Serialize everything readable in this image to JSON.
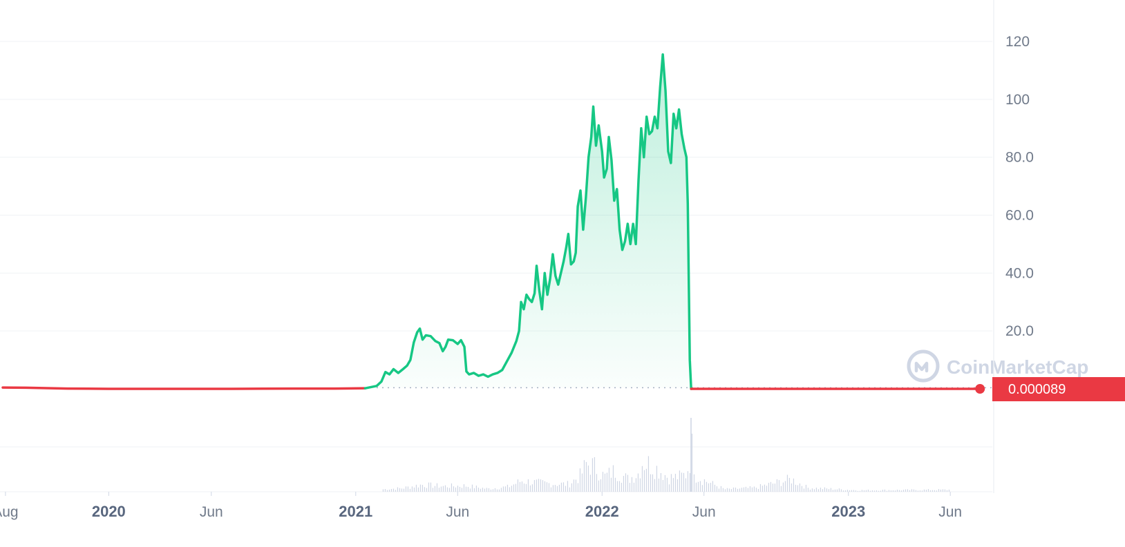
{
  "watermark": {
    "text": "CoinMarketCap",
    "icon": "coinmarketcap-logo-icon"
  },
  "current_price": {
    "label": "0.000089",
    "color": "#ea3943"
  },
  "colors": {
    "up": "#16c784",
    "down": "#ea3943",
    "grid": "#eff2f5",
    "axis_text": "#707a8a",
    "volume": "#cfd6e4"
  },
  "chart_data": {
    "type": "area",
    "title": "",
    "xlabel": "",
    "ylabel": "",
    "xlim": [
      "2019-07-28",
      "2023-07-22"
    ],
    "ylim": [
      0,
      130
    ],
    "yticks": [
      20,
      40,
      60,
      80,
      100,
      120
    ],
    "ytick_labels": [
      "20.0",
      "40.0",
      "60.0",
      "80.0",
      "100",
      "120"
    ],
    "xticks": [
      {
        "date": "2019-08-01",
        "label": "Aug",
        "major": false
      },
      {
        "date": "2020-01-01",
        "label": "2020",
        "major": true
      },
      {
        "date": "2020-06-01",
        "label": "Jun",
        "major": false
      },
      {
        "date": "2021-01-01",
        "label": "2021",
        "major": true
      },
      {
        "date": "2021-06-01",
        "label": "Jun",
        "major": false
      },
      {
        "date": "2022-01-01",
        "label": "2022",
        "major": true
      },
      {
        "date": "2022-06-01",
        "label": "Jun",
        "major": false
      },
      {
        "date": "2023-01-01",
        "label": "2023",
        "major": true
      },
      {
        "date": "2023-06-01",
        "label": "Jun",
        "major": false
      }
    ],
    "baseline": 0.4,
    "grid": true,
    "series": [
      {
        "values": [
          [
            "2019-07-28",
            0.45
          ],
          [
            "2019-09-01",
            0.4
          ],
          [
            "2019-11-01",
            0.1
          ],
          [
            "2020-01-01",
            0.0
          ],
          [
            "2020-04-01",
            0.0
          ],
          [
            "2020-07-01",
            0.0
          ],
          [
            "2020-10-01",
            0.1
          ],
          [
            "2020-12-01",
            0.1
          ],
          [
            "2021-01-15",
            0.2
          ],
          [
            "2021-02-01",
            1.0
          ],
          [
            "2021-02-08",
            2.5
          ],
          [
            "2021-02-14",
            5.8
          ],
          [
            "2021-02-20",
            5.0
          ],
          [
            "2021-02-26",
            6.8
          ],
          [
            "2021-03-05",
            5.5
          ],
          [
            "2021-03-12",
            6.8
          ],
          [
            "2021-03-18",
            8.0
          ],
          [
            "2021-03-23",
            10.0
          ],
          [
            "2021-03-28",
            16.0
          ],
          [
            "2021-04-02",
            19.5
          ],
          [
            "2021-04-06",
            20.8
          ],
          [
            "2021-04-10",
            17.0
          ],
          [
            "2021-04-15",
            18.5
          ],
          [
            "2021-04-22",
            18.2
          ],
          [
            "2021-04-29",
            16.5
          ],
          [
            "2021-05-05",
            15.8
          ],
          [
            "2021-05-10",
            13.0
          ],
          [
            "2021-05-14",
            14.5
          ],
          [
            "2021-05-18",
            17.0
          ],
          [
            "2021-05-25",
            16.8
          ],
          [
            "2021-06-01",
            15.5
          ],
          [
            "2021-06-06",
            16.8
          ],
          [
            "2021-06-11",
            14.5
          ],
          [
            "2021-06-14",
            6.0
          ],
          [
            "2021-06-18",
            5.0
          ],
          [
            "2021-06-25",
            5.5
          ],
          [
            "2021-07-02",
            4.5
          ],
          [
            "2021-07-09",
            5.0
          ],
          [
            "2021-07-16",
            4.2
          ],
          [
            "2021-07-23",
            5.0
          ],
          [
            "2021-07-30",
            5.5
          ],
          [
            "2021-08-06",
            6.5
          ],
          [
            "2021-08-13",
            9.5
          ],
          [
            "2021-08-20",
            12.5
          ],
          [
            "2021-08-27",
            16.5
          ],
          [
            "2021-08-31",
            20.0
          ],
          [
            "2021-09-03",
            30.0
          ],
          [
            "2021-09-07",
            27.5
          ],
          [
            "2021-09-11",
            32.5
          ],
          [
            "2021-09-15",
            31.0
          ],
          [
            "2021-09-19",
            30.0
          ],
          [
            "2021-09-23",
            33.0
          ],
          [
            "2021-09-26",
            42.5
          ],
          [
            "2021-09-30",
            34.0
          ],
          [
            "2021-10-04",
            27.5
          ],
          [
            "2021-10-08",
            40.0
          ],
          [
            "2021-10-12",
            32.5
          ],
          [
            "2021-10-16",
            38.0
          ],
          [
            "2021-10-20",
            46.5
          ],
          [
            "2021-10-24",
            39.0
          ],
          [
            "2021-10-28",
            36.0
          ],
          [
            "2021-11-01",
            40.0
          ],
          [
            "2021-11-05",
            44.0
          ],
          [
            "2021-11-09",
            49.0
          ],
          [
            "2021-11-12",
            53.5
          ],
          [
            "2021-11-16",
            43.0
          ],
          [
            "2021-11-20",
            44.0
          ],
          [
            "2021-11-23",
            47.0
          ],
          [
            "2021-11-26",
            63.0
          ],
          [
            "2021-11-30",
            68.5
          ],
          [
            "2021-12-04",
            55.0
          ],
          [
            "2021-12-08",
            66.0
          ],
          [
            "2021-12-12",
            80.0
          ],
          [
            "2021-12-16",
            87.0
          ],
          [
            "2021-12-19",
            97.5
          ],
          [
            "2021-12-23",
            84.0
          ],
          [
            "2021-12-27",
            91.0
          ],
          [
            "2022-01-01",
            82.0
          ],
          [
            "2022-01-04",
            73.0
          ],
          [
            "2022-01-08",
            76.0
          ],
          [
            "2022-01-11",
            87.0
          ],
          [
            "2022-01-15",
            79.0
          ],
          [
            "2022-01-19",
            65.0
          ],
          [
            "2022-01-23",
            69.0
          ],
          [
            "2022-01-27",
            55.0
          ],
          [
            "2022-01-31",
            48.0
          ],
          [
            "2022-02-04",
            51.0
          ],
          [
            "2022-02-08",
            57.0
          ],
          [
            "2022-02-12",
            50.0
          ],
          [
            "2022-02-16",
            57.0
          ],
          [
            "2022-02-20",
            50.0
          ],
          [
            "2022-02-24",
            72.0
          ],
          [
            "2022-02-28",
            90.0
          ],
          [
            "2022-03-04",
            80.0
          ],
          [
            "2022-03-08",
            94.0
          ],
          [
            "2022-03-12",
            88.0
          ],
          [
            "2022-03-16",
            89.0
          ],
          [
            "2022-03-20",
            94.0
          ],
          [
            "2022-03-24",
            90.0
          ],
          [
            "2022-03-28",
            104.0
          ],
          [
            "2022-04-01",
            115.5
          ],
          [
            "2022-04-05",
            103.0
          ],
          [
            "2022-04-09",
            82.0
          ],
          [
            "2022-04-13",
            78.0
          ],
          [
            "2022-04-17",
            95.0
          ],
          [
            "2022-04-21",
            90.0
          ],
          [
            "2022-04-25",
            96.5
          ],
          [
            "2022-04-29",
            88.0
          ],
          [
            "2022-05-03",
            83.0
          ],
          [
            "2022-05-06",
            80.0
          ],
          [
            "2022-05-08",
            64.0
          ],
          [
            "2022-05-11",
            10.0
          ],
          [
            "2022-05-13",
            0.0
          ],
          [
            "2023-07-15",
            0.0
          ]
        ]
      }
    ],
    "volume": [
      [
        "2021-02-10",
        0.05
      ],
      [
        "2021-03-10",
        0.07
      ],
      [
        "2021-04-08",
        0.14
      ],
      [
        "2021-05-10",
        0.11
      ],
      [
        "2021-06-12",
        0.12
      ],
      [
        "2021-07-15",
        0.06
      ],
      [
        "2021-08-15",
        0.1
      ],
      [
        "2021-09-03",
        0.22
      ],
      [
        "2021-09-26",
        0.18
      ],
      [
        "2021-10-20",
        0.16
      ],
      [
        "2021-11-12",
        0.15
      ],
      [
        "2021-11-30",
        0.33
      ],
      [
        "2021-12-08",
        0.55
      ],
      [
        "2021-12-19",
        0.52
      ],
      [
        "2022-01-04",
        0.3
      ],
      [
        "2022-01-19",
        0.42
      ],
      [
        "2022-02-08",
        0.25
      ],
      [
        "2022-02-24",
        0.38
      ],
      [
        "2022-03-01",
        0.6
      ],
      [
        "2022-03-12",
        0.55
      ],
      [
        "2022-03-28",
        0.42
      ],
      [
        "2022-04-09",
        0.28
      ],
      [
        "2022-04-25",
        0.3
      ],
      [
        "2022-05-05",
        0.35
      ],
      [
        "2022-05-11",
        0.65
      ],
      [
        "2022-05-12",
        1.0
      ],
      [
        "2022-05-20",
        0.3
      ],
      [
        "2022-07-01",
        0.05
      ],
      [
        "2022-08-15",
        0.08
      ],
      [
        "2022-10-08",
        0.25
      ],
      [
        "2022-11-01",
        0.08
      ],
      [
        "2023-01-15",
        0.03
      ],
      [
        "2023-06-01",
        0.04
      ]
    ]
  }
}
